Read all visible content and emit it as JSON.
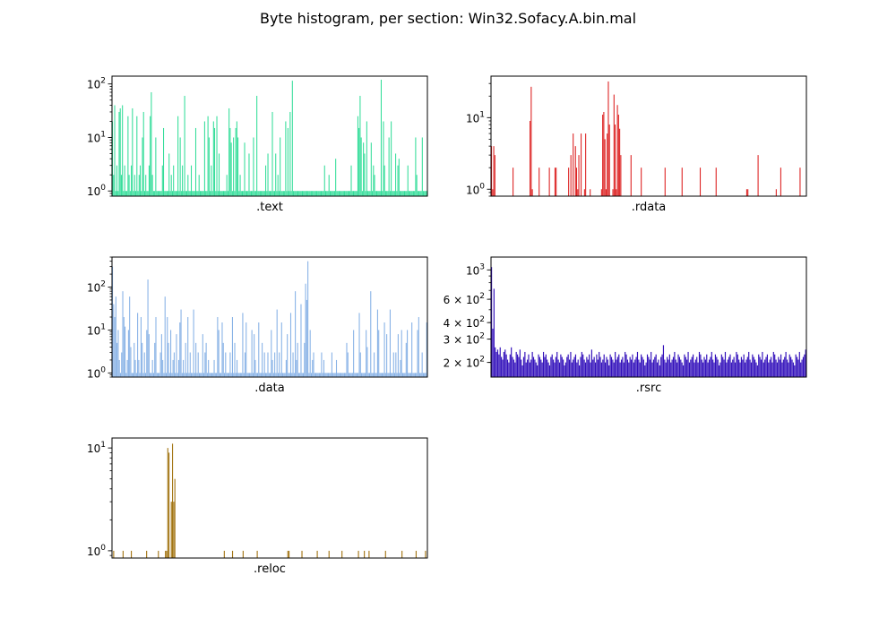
{
  "title": "Byte histogram, per section: Win32.Sofacy.A.bin.mal",
  "chart_data": [
    {
      "type": "bar",
      "section": ".text",
      "xlabel": ".text",
      "yscale": "log",
      "ylim": [
        0.8,
        140
      ],
      "color": "#33dd99",
      "categories": "bytes 0-255",
      "y_ticks": [
        {
          "mantissa": "",
          "exp": "0",
          "value": 1
        },
        {
          "mantissa": "",
          "exp": "1",
          "value": 10
        },
        {
          "mantissa": "",
          "exp": "2",
          "value": 100
        }
      ],
      "values": [
        20,
        2,
        40,
        1,
        3,
        1,
        30,
        35,
        2,
        40,
        1,
        3,
        1,
        1,
        25,
        2,
        1,
        3,
        35,
        1,
        2,
        1,
        25,
        1,
        2,
        3,
        1,
        10,
        30,
        1,
        2,
        1,
        1,
        3,
        25,
        70,
        2,
        1,
        1,
        10,
        1,
        1,
        1,
        1,
        1,
        3,
        15,
        1,
        1,
        1,
        1,
        5,
        1,
        2,
        1,
        3,
        1,
        1,
        1,
        25,
        1,
        10,
        1,
        3,
        1,
        60,
        1,
        1,
        2,
        1,
        1,
        3,
        1,
        1,
        1,
        15,
        1,
        1,
        2,
        1,
        1,
        1,
        1,
        20,
        1,
        1,
        25,
        10,
        1,
        3,
        1,
        20,
        15,
        1,
        25,
        1,
        5,
        1,
        1,
        1,
        1,
        1,
        1,
        2,
        1,
        35,
        15,
        8,
        1,
        10,
        1,
        15,
        20,
        10,
        1,
        2,
        1,
        1,
        1,
        8,
        1,
        1,
        1,
        5,
        1,
        1,
        1,
        10,
        1,
        1,
        60,
        1,
        1,
        1,
        1,
        1,
        1,
        1,
        3,
        1,
        5,
        1,
        1,
        1,
        30,
        1,
        1,
        5,
        1,
        2,
        1,
        10,
        1,
        1,
        1,
        1,
        20,
        1,
        15,
        1,
        30,
        1,
        115,
        1,
        1,
        1,
        1,
        1,
        1,
        1,
        1,
        1,
        1,
        1,
        1,
        1,
        1,
        1,
        1,
        1,
        1,
        1,
        1,
        1,
        1,
        1,
        1,
        1,
        1,
        1,
        1,
        3,
        1,
        1,
        1,
        2,
        1,
        1,
        1,
        1,
        1,
        4,
        1,
        1,
        1,
        1,
        1,
        1,
        1,
        1,
        1,
        1,
        1,
        1,
        1,
        3,
        1,
        1,
        1,
        1,
        1,
        25,
        15,
        60,
        10,
        1,
        8,
        5,
        1,
        20,
        1,
        1,
        1,
        8,
        1,
        3,
        2,
        1,
        1,
        1,
        1,
        1,
        120,
        1,
        20,
        3,
        1,
        1,
        1,
        10,
        1,
        20,
        1,
        1,
        1,
        5,
        1,
        3,
        4,
        1,
        1,
        1,
        1,
        1,
        1,
        1,
        3,
        1,
        1,
        1,
        1,
        1,
        1,
        10,
        2,
        1,
        1,
        1,
        1,
        10,
        1,
        1,
        1,
        1
      ]
    },
    {
      "type": "bar",
      "section": ".rdata",
      "xlabel": ".rdata",
      "yscale": "log",
      "ylim": [
        0.8,
        38
      ],
      "color": "#dd2222",
      "categories": "bytes 0-255",
      "y_ticks": [
        {
          "mantissa": "",
          "exp": "0",
          "value": 1
        },
        {
          "mantissa": "",
          "exp": "1",
          "value": 10
        }
      ],
      "values": [
        4,
        1,
        4,
        3,
        0,
        0,
        0,
        0,
        0,
        0,
        0,
        0,
        0,
        0,
        0,
        0,
        0,
        0,
        0,
        2,
        0,
        0,
        0,
        0,
        0,
        0,
        0,
        0,
        0,
        0,
        0,
        0,
        0,
        0,
        9,
        27,
        1,
        0,
        0,
        0,
        0,
        0,
        2,
        0,
        0,
        0,
        0,
        0,
        0,
        0,
        0,
        2,
        0,
        0,
        0,
        0,
        2,
        2,
        0,
        0,
        0,
        0,
        0,
        0,
        0,
        0,
        0,
        0,
        2,
        0,
        3,
        0,
        6,
        0,
        4,
        2,
        1,
        3,
        0,
        6,
        0,
        0,
        1,
        6,
        0,
        0,
        0,
        1,
        0,
        0,
        0,
        0,
        0,
        0,
        0,
        0,
        0,
        1,
        11,
        12,
        5,
        1,
        6,
        32,
        8,
        0,
        0,
        1,
        21,
        8,
        1,
        15,
        11,
        7,
        3,
        0,
        0,
        0,
        0,
        0,
        0,
        0,
        0,
        3,
        0,
        0,
        0,
        0,
        0,
        0,
        0,
        0,
        2,
        0,
        0,
        0,
        0,
        0,
        0,
        0,
        0,
        0,
        0,
        0,
        0,
        0,
        0,
        0,
        0,
        0,
        0,
        0,
        0,
        2,
        0,
        0,
        0,
        0,
        0,
        0,
        0,
        0,
        0,
        0,
        0,
        0,
        0,
        0,
        2,
        0,
        0,
        0,
        0,
        0,
        0,
        0,
        0,
        0,
        0,
        0,
        0,
        0,
        0,
        0,
        2,
        0,
        0,
        0,
        0,
        0,
        0,
        0,
        0,
        0,
        0,
        0,
        0,
        0,
        2,
        0,
        0,
        0,
        0,
        0,
        0,
        0,
        0,
        0,
        0,
        0,
        0,
        0,
        0,
        0,
        0,
        0,
        0,
        0,
        0,
        0,
        0,
        0,
        0,
        0,
        0,
        1,
        1,
        0,
        0,
        0,
        0,
        0,
        0,
        0,
        0,
        3,
        0,
        0,
        0,
        0,
        0,
        0,
        0,
        0,
        0,
        0,
        0,
        0,
        0,
        0,
        0,
        1,
        0,
        0,
        0,
        2,
        0,
        0,
        0,
        0,
        0,
        0,
        0,
        0,
        0,
        0,
        0,
        0,
        0,
        0,
        0,
        0,
        2,
        0,
        0,
        0,
        0,
        0
      ]
    },
    {
      "type": "bar",
      "section": ".data",
      "xlabel": ".data",
      "yscale": "log",
      "ylim": [
        0.8,
        500
      ],
      "color": "#88b2e6",
      "categories": "bytes 0-255",
      "y_ticks": [
        {
          "mantissa": "",
          "exp": "0",
          "value": 1
        },
        {
          "mantissa": "",
          "exp": "1",
          "value": 10
        },
        {
          "mantissa": "",
          "exp": "2",
          "value": 100
        }
      ],
      "values": [
        300,
        40,
        20,
        60,
        5,
        10,
        2,
        1,
        3,
        80,
        20,
        12,
        1,
        2,
        10,
        60,
        4,
        1,
        1,
        5,
        2,
        1,
        25,
        2,
        1,
        20,
        5,
        1,
        3,
        1,
        10,
        150,
        8,
        1,
        1,
        2,
        1,
        5,
        20,
        1,
        1,
        1,
        3,
        8,
        2,
        1,
        60,
        1,
        20,
        5,
        1,
        10,
        1,
        2,
        3,
        1,
        8,
        1,
        2,
        15,
        30,
        1,
        2,
        1,
        5,
        1,
        20,
        1,
        3,
        1,
        1,
        30,
        1,
        5,
        1,
        3,
        1,
        1,
        1,
        8,
        1,
        3,
        5,
        1,
        2,
        1,
        1,
        1,
        1,
        2,
        1,
        1,
        20,
        10,
        1,
        1,
        15,
        5,
        1,
        3,
        1,
        1,
        1,
        3,
        1,
        20,
        1,
        5,
        1,
        2,
        1,
        1,
        1,
        1,
        25,
        1,
        3,
        15,
        1,
        1,
        1,
        1,
        10,
        1,
        8,
        2,
        1,
        1,
        15,
        1,
        1,
        5,
        1,
        3,
        1,
        1,
        3,
        1,
        1,
        10,
        2,
        1,
        3,
        1,
        30,
        1,
        3,
        1,
        15,
        1,
        1,
        1,
        2,
        8,
        1,
        1,
        25,
        1,
        3,
        1,
        80,
        2,
        5,
        1,
        1,
        40,
        1,
        1,
        5,
        120,
        50,
        400,
        1,
        10,
        1,
        2,
        3,
        1,
        1,
        1,
        1,
        1,
        1,
        3,
        1,
        2,
        1,
        1,
        1,
        1,
        1,
        1,
        3,
        1,
        1,
        1,
        2,
        1,
        1,
        1,
        1,
        1,
        1,
        1,
        1,
        5,
        3,
        1,
        1,
        1,
        1,
        10,
        1,
        1,
        1,
        1,
        25,
        3,
        1,
        1,
        1,
        1,
        10,
        4,
        1,
        1,
        80,
        1,
        1,
        3,
        1,
        1,
        30,
        10,
        1,
        1,
        1,
        1,
        15,
        1,
        8,
        1,
        1,
        30,
        1,
        1,
        3,
        1,
        3,
        1,
        8,
        1,
        2,
        10,
        1,
        1,
        1,
        5,
        10,
        1,
        1,
        1,
        15,
        1,
        1,
        1,
        1,
        10,
        20,
        1,
        1,
        3,
        1,
        1,
        1,
        15
      ]
    },
    {
      "type": "bar",
      "section": ".rsrc",
      "xlabel": ".rsrc",
      "yscale": "log",
      "ylim": [
        155,
        1250
      ],
      "color": "#3311bb",
      "categories": "bytes 0-255",
      "y_ticks": [
        {
          "mantissa": "2 × 10",
          "exp": "2",
          "value": 200
        },
        {
          "mantissa": "3 × 10",
          "exp": "2",
          "value": 300
        },
        {
          "mantissa": "4 × 10",
          "exp": "2",
          "value": 400
        },
        {
          "mantissa": "6 × 10",
          "exp": "2",
          "value": 600
        },
        {
          "mantissa": "10",
          "exp": "3",
          "value": 1000
        }
      ],
      "values": [
        1050,
        360,
        720,
        260,
        240,
        250,
        230,
        260,
        220,
        210,
        240,
        250,
        230,
        210,
        200,
        230,
        260,
        220,
        210,
        200,
        240,
        230,
        220,
        250,
        210,
        190,
        220,
        240,
        200,
        210,
        230,
        200,
        210,
        240,
        220,
        210,
        200,
        190,
        230,
        220,
        210,
        200,
        240,
        220,
        230,
        210,
        200,
        190,
        220,
        230,
        210,
        200,
        220,
        240,
        210,
        200,
        230,
        220,
        210,
        190,
        200,
        220,
        230,
        210,
        240,
        200,
        210,
        220,
        230,
        200,
        210,
        190,
        220,
        240,
        230,
        210,
        200,
        220,
        210,
        230,
        200,
        250,
        210,
        220,
        200,
        230,
        210,
        240,
        220,
        200,
        210,
        230,
        200,
        220,
        210,
        190,
        230,
        220,
        210,
        200,
        240,
        210,
        220,
        230,
        200,
        210,
        220,
        200,
        240,
        230,
        210,
        200,
        220,
        210,
        230,
        200,
        210,
        220,
        240,
        210,
        200,
        230,
        220,
        210,
        190,
        200,
        230,
        220,
        210,
        240,
        200,
        210,
        220,
        230,
        200,
        210,
        190,
        220,
        230,
        270,
        210,
        200,
        220,
        210,
        230,
        200,
        210,
        220,
        240,
        210,
        200,
        230,
        220,
        210,
        200,
        190,
        230,
        220,
        210,
        240,
        200,
        210,
        220,
        230,
        200,
        210,
        220,
        200,
        240,
        230,
        210,
        200,
        220,
        210,
        230,
        200,
        210,
        220,
        240,
        210,
        200,
        230,
        220,
        210,
        190,
        200,
        230,
        220,
        210,
        240,
        200,
        210,
        220,
        230,
        200,
        210,
        220,
        200,
        240,
        230,
        210,
        200,
        220,
        210,
        230,
        200,
        210,
        220,
        240,
        210,
        200,
        230,
        220,
        210,
        200,
        190,
        230,
        220,
        210,
        240,
        200,
        210,
        220,
        230,
        200,
        210,
        220,
        200,
        240,
        230,
        210,
        200,
        220,
        210,
        230,
        200,
        210,
        220,
        240,
        210,
        200,
        230,
        220,
        210,
        200,
        190,
        230,
        220,
        210,
        240,
        200,
        210,
        220,
        230,
        250
      ]
    },
    {
      "type": "bar",
      "section": ".reloc",
      "xlabel": ".reloc",
      "yscale": "log",
      "ylim": [
        0.85,
        12.5
      ],
      "color": "#a37514",
      "categories": "bytes 0-255",
      "y_ticks": [
        {
          "mantissa": "",
          "exp": "0",
          "value": 1
        },
        {
          "mantissa": "",
          "exp": "1",
          "value": 10
        }
      ],
      "values": [
        0,
        1,
        0,
        0,
        0,
        0,
        0,
        0,
        0,
        1,
        0,
        0,
        0,
        0,
        0,
        0,
        1,
        0,
        0,
        0,
        0,
        0,
        0,
        0,
        0,
        0,
        0,
        0,
        0,
        1,
        0,
        0,
        0,
        0,
        0,
        0,
        0,
        0,
        0,
        1,
        0,
        0,
        0,
        0,
        0,
        1,
        1,
        10,
        9,
        0,
        3,
        11,
        3,
        5,
        0,
        0,
        0,
        0,
        0,
        0,
        0,
        0,
        0,
        0,
        0,
        0,
        0,
        0,
        0,
        0,
        0,
        0,
        0,
        0,
        0,
        0,
        0,
        0,
        0,
        0,
        0,
        0,
        0,
        0,
        0,
        0,
        0,
        0,
        0,
        0,
        0,
        0,
        0,
        0,
        0,
        1,
        0,
        0,
        0,
        0,
        0,
        0,
        1,
        0,
        0,
        0,
        0,
        0,
        0,
        0,
        0,
        1,
        0,
        0,
        0,
        0,
        0,
        0,
        0,
        0,
        0,
        0,
        0,
        1,
        0,
        0,
        0,
        0,
        0,
        0,
        0,
        0,
        0,
        0,
        0,
        0,
        0,
        0,
        0,
        0,
        0,
        0,
        0,
        0,
        0,
        0,
        0,
        0,
        0,
        1,
        1,
        0,
        0,
        0,
        0,
        0,
        0,
        0,
        0,
        0,
        0,
        1,
        0,
        0,
        0,
        0,
        0,
        0,
        0,
        0,
        0,
        0,
        0,
        0,
        1,
        0,
        0,
        0,
        0,
        0,
        0,
        0,
        0,
        0,
        1,
        0,
        0,
        0,
        0,
        0,
        0,
        0,
        0,
        0,
        0,
        1,
        0,
        0,
        0,
        0,
        0,
        0,
        0,
        0,
        0,
        0,
        0,
        0,
        0,
        1,
        0,
        0,
        0,
        0,
        1,
        0,
        0,
        0,
        1,
        0,
        0,
        0,
        0,
        0,
        0,
        0,
        0,
        0,
        0,
        0,
        0,
        0,
        1,
        0,
        0,
        0,
        0,
        0,
        0,
        0,
        0,
        0,
        0,
        0,
        0,
        0,
        1,
        0,
        0,
        0,
        0,
        0,
        0,
        0,
        0,
        0,
        0,
        0,
        1,
        0,
        0,
        0,
        0,
        0,
        0,
        0,
        1,
        0
      ]
    }
  ]
}
